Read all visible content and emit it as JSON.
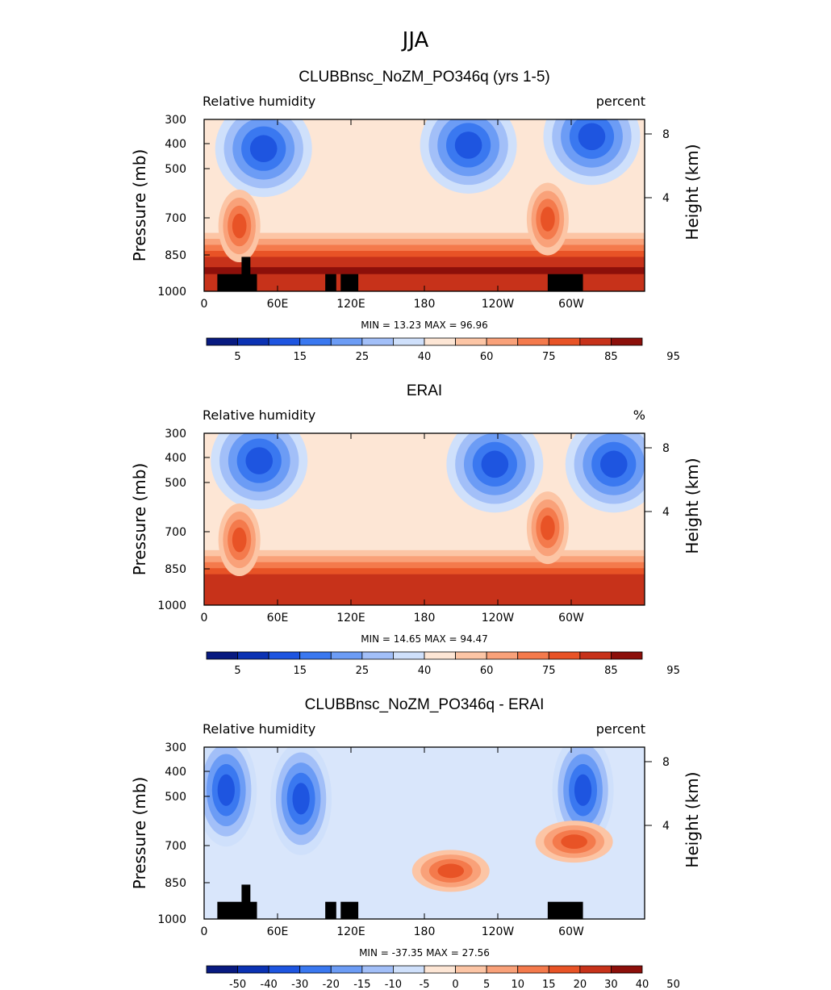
{
  "figure_title": "JJA",
  "chart_data": [
    {
      "type": "heatmap",
      "title": "CLUBBnsc_NoZM_PO346q (yrs 1-5)",
      "left_label": "Relative humidity",
      "right_label": "percent",
      "ylabel": "Pressure (mb)",
      "ylabel_right": "Height (km)",
      "xticks": [
        "0",
        "60E",
        "120E",
        "180",
        "120W",
        "60W"
      ],
      "yticks": [
        "300",
        "400",
        "500",
        "700",
        "850",
        "1000"
      ],
      "yticks_right": [
        "8",
        "4"
      ],
      "xlim": [
        0,
        360
      ],
      "ylim": [
        1000,
        300
      ],
      "stats_text": "MIN =   13.23   MAX =   96.96",
      "min": 13.23,
      "max": 96.96,
      "colorbar_labels": [
        "5",
        "15",
        "25",
        "40",
        "60",
        "75",
        "85",
        "95"
      ],
      "colorbar_colors": [
        "#081a80",
        "#0b32b3",
        "#1e55e0",
        "#3a78f0",
        "#6c9cf5",
        "#a2bff8",
        "#cfe0fb",
        "#fde6d5",
        "#fcc5a5",
        "#f9a179",
        "#f47a4c",
        "#e85326",
        "#c7321a",
        "#8c0f0a"
      ],
      "features": {
        "blue_cores": [
          [
            0.135,
            0.17
          ],
          [
            0.6,
            0.15
          ],
          [
            0.88,
            0.1
          ]
        ],
        "orange_blobs": [
          [
            0.08,
            0.62
          ],
          [
            0.78,
            0.58
          ]
        ],
        "surface_band_top": 0.78,
        "terrain_blocks": [
          [
            0.03,
            0.12
          ],
          [
            0.275,
            0.3
          ],
          [
            0.31,
            0.35
          ],
          [
            0.78,
            0.86
          ]
        ],
        "terrain_peaks": [
          [
            0.085,
            0.105,
            0.8
          ]
        ]
      }
    },
    {
      "type": "heatmap",
      "title": "ERAI",
      "left_label": "Relative humidity",
      "right_label": "%",
      "ylabel": "Pressure (mb)",
      "ylabel_right": "Height (km)",
      "xticks": [
        "0",
        "60E",
        "120E",
        "180",
        "120W",
        "60W"
      ],
      "yticks": [
        "300",
        "400",
        "500",
        "700",
        "850",
        "1000"
      ],
      "yticks_right": [
        "8",
        "4"
      ],
      "xlim": [
        0,
        360
      ],
      "ylim": [
        1000,
        300
      ],
      "stats_text": "MIN =   14.65   MAX =   94.47",
      "min": 14.65,
      "max": 94.47,
      "colorbar_labels": [
        "5",
        "15",
        "25",
        "40",
        "60",
        "75",
        "85",
        "95"
      ],
      "colorbar_colors": [
        "#081a80",
        "#0b32b3",
        "#1e55e0",
        "#3a78f0",
        "#6c9cf5",
        "#a2bff8",
        "#cfe0fb",
        "#fde6d5",
        "#fcc5a5",
        "#f9a179",
        "#f47a4c",
        "#e85326",
        "#c7321a",
        "#8c0f0a"
      ],
      "features": {
        "blue_cores": [
          [
            0.125,
            0.16
          ],
          [
            0.66,
            0.18
          ],
          [
            0.93,
            0.18
          ]
        ],
        "orange_blobs": [
          [
            0.08,
            0.62
          ],
          [
            0.78,
            0.55
          ]
        ],
        "surface_band_top": 0.8,
        "terrain_blocks": [],
        "terrain_peaks": []
      }
    },
    {
      "type": "heatmap",
      "title": "CLUBBnsc_NoZM_PO346q - ERAI",
      "left_label": "Relative humidity",
      "right_label": "percent",
      "ylabel": "Pressure (mb)",
      "ylabel_right": "Height (km)",
      "xticks": [
        "0",
        "60E",
        "120E",
        "180",
        "120W",
        "60W"
      ],
      "yticks": [
        "300",
        "400",
        "500",
        "700",
        "850",
        "1000"
      ],
      "yticks_right": [
        "8",
        "4"
      ],
      "xlim": [
        0,
        360
      ],
      "ylim": [
        1000,
        300
      ],
      "stats_text": "MIN = -37.35   MAX =   27.56",
      "min": -37.35,
      "max": 27.56,
      "colorbar_labels": [
        "-50",
        "-40",
        "-30",
        "-20",
        "-15",
        "-10",
        "-5",
        "0",
        "5",
        "10",
        "15",
        "20",
        "30",
        "40",
        "50"
      ],
      "colorbar_colors": [
        "#081a80",
        "#0b32b3",
        "#1e55e0",
        "#3a78f0",
        "#6c9cf5",
        "#a2bff8",
        "#cfe0fb",
        "#fde6d5",
        "#fcc5a5",
        "#f9a179",
        "#f47a4c",
        "#e85326",
        "#c7321a",
        "#8c0f0a"
      ],
      "features": {
        "blue_cores": [
          [
            0.05,
            0.25
          ],
          [
            0.22,
            0.3
          ],
          [
            0.86,
            0.25
          ]
        ],
        "orange_blobs": [
          [
            0.56,
            0.72
          ],
          [
            0.84,
            0.55
          ]
        ],
        "surface_band_top": 0.0,
        "terrain_blocks": [
          [
            0.03,
            0.12
          ],
          [
            0.275,
            0.3
          ],
          [
            0.31,
            0.35
          ],
          [
            0.78,
            0.86
          ]
        ],
        "terrain_peaks": [
          [
            0.085,
            0.105,
            0.8
          ]
        ]
      }
    }
  ]
}
